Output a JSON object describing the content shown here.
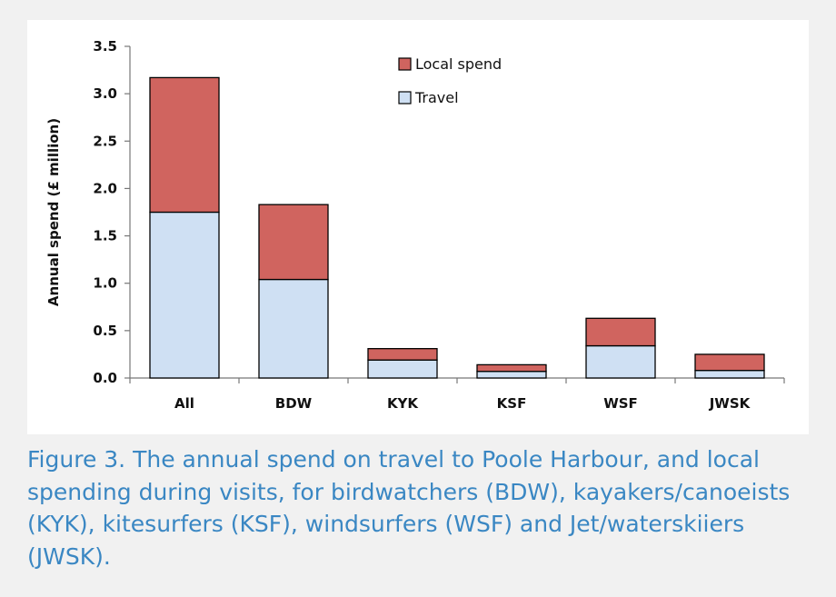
{
  "chart_data": {
    "type": "bar",
    "stacked": true,
    "categories": [
      "All",
      "BDW",
      "KYK",
      "KSF",
      "WSF",
      "JWSK"
    ],
    "series": [
      {
        "name": "Travel",
        "color": "#cfe0f3",
        "values": [
          1.75,
          1.04,
          0.19,
          0.07,
          0.34,
          0.08
        ]
      },
      {
        "name": "Local spend",
        "color": "#d0645f",
        "values": [
          1.42,
          0.79,
          0.12,
          0.07,
          0.29,
          0.17
        ]
      }
    ],
    "ylabel": "Annual spend (£ million)",
    "xlabel": "",
    "ylim": [
      0,
      3.5
    ],
    "yticks": [
      "0.0",
      "0.5",
      "1.0",
      "1.5",
      "2.0",
      "2.5",
      "3.0",
      "3.5"
    ],
    "grid": false,
    "legend_position": "top-center",
    "legend": [
      "Local spend",
      "Travel"
    ]
  },
  "caption": "Figure 3. The annual spend on travel to Poole Harbour, and local spending during visits, for birdwatchers (BDW), kayakers/canoeists (KYK), kitesurfers (KSF), windsurfers (WSF) and Jet/waterskiiers (JWSK)."
}
